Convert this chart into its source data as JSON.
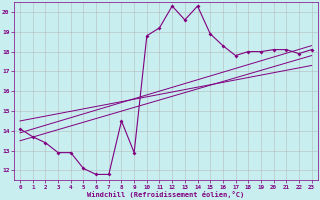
{
  "title": "",
  "xlabel": "Windchill (Refroidissement éolien,°C)",
  "bg_color": "#c8eef0",
  "grid_color": "#b0b0b0",
  "line_color": "#800080",
  "x_ticks": [
    0,
    1,
    2,
    3,
    4,
    5,
    6,
    7,
    8,
    9,
    10,
    11,
    12,
    13,
    14,
    15,
    16,
    17,
    18,
    19,
    20,
    21,
    22,
    23
  ],
  "y_ticks": [
    12,
    13,
    14,
    15,
    16,
    17,
    18,
    19,
    20
  ],
  "xlim": [
    -0.5,
    23.5
  ],
  "ylim": [
    11.5,
    20.5
  ],
  "line1_x": [
    0,
    1,
    2,
    3,
    4,
    5,
    6,
    7,
    8,
    9,
    10,
    11,
    12,
    13,
    14,
    15,
    16,
    17,
    18,
    19,
    20,
    21,
    22,
    23
  ],
  "line1_y": [
    14.1,
    13.7,
    13.4,
    12.9,
    12.9,
    12.1,
    11.8,
    11.8,
    14.5,
    12.9,
    18.8,
    19.2,
    20.3,
    19.6,
    20.3,
    18.9,
    18.3,
    17.8,
    18.0,
    18.0,
    18.1,
    18.1,
    17.9,
    18.1
  ],
  "line2_x": [
    0,
    23
  ],
  "line2_y": [
    13.5,
    17.8
  ],
  "line3_x": [
    0,
    23
  ],
  "line3_y": [
    13.9,
    18.3
  ],
  "line4_x": [
    0,
    23
  ],
  "line4_y": [
    14.5,
    17.3
  ]
}
